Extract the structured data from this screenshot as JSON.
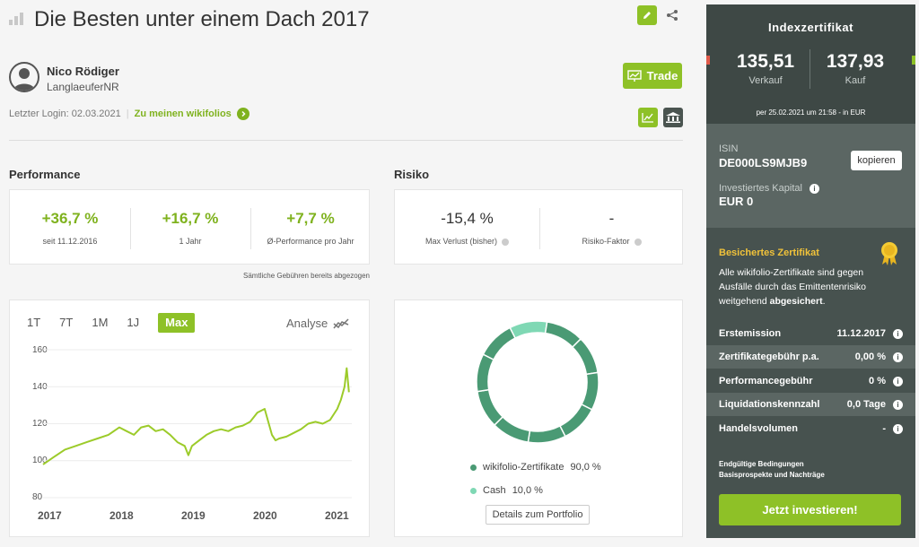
{
  "header": {
    "title": "Die Besten unter einem Dach 2017"
  },
  "user": {
    "name": "Nico Rödiger",
    "handle": "LanglaeuferNR",
    "last_login_label": "Letzter Login: 02.03.2021",
    "wikifolios_link": "Zu meinen wikifolios"
  },
  "trade_label": "Trade",
  "performance": {
    "heading": "Performance",
    "items": [
      {
        "value": "+36,7 %",
        "label": "seit 11.12.2016"
      },
      {
        "value": "+16,7 %",
        "label": "1 Jahr"
      },
      {
        "value": "+7,7 %",
        "label": "Ø-Performance pro Jahr"
      }
    ],
    "fees_note": "Sämtliche Gebühren bereits abgezogen"
  },
  "risk": {
    "heading": "Risiko",
    "items": [
      {
        "value": "-15,4 %",
        "label": "Max Verlust (bisher)"
      },
      {
        "value": "-",
        "label": "Risiko-Faktor"
      }
    ]
  },
  "chart_tabs": [
    "1T",
    "7T",
    "1M",
    "1J",
    "Max"
  ],
  "chart_active_tab": "Max",
  "analyse_label": "Analyse",
  "chart_data": [
    {
      "type": "line",
      "title": "",
      "xlabel": "",
      "ylabel": "",
      "x_ticks": [
        "2017",
        "2018",
        "2019",
        "2020",
        "2021"
      ],
      "y_ticks": [
        "160",
        "140",
        "120",
        "100",
        "80"
      ],
      "ylim": [
        80,
        160
      ],
      "xlim": [
        2016.95,
        2021.2
      ],
      "grid": true,
      "series": [
        {
          "color": "#9ccb2a",
          "x": [
            2016.95,
            2017.1,
            2017.25,
            2017.4,
            2017.55,
            2017.7,
            2017.85,
            2018.0,
            2018.1,
            2018.2,
            2018.3,
            2018.4,
            2018.5,
            2018.6,
            2018.7,
            2018.8,
            2018.9,
            2018.95,
            2019.0,
            2019.1,
            2019.2,
            2019.3,
            2019.4,
            2019.5,
            2019.6,
            2019.7,
            2019.8,
            2019.9,
            2020.0,
            2020.1,
            2020.15,
            2020.2,
            2020.3,
            2020.4,
            2020.5,
            2020.6,
            2020.7,
            2020.8,
            2020.9,
            2021.0,
            2021.05,
            2021.1,
            2021.13,
            2021.16
          ],
          "y": [
            98,
            102,
            106,
            108,
            110,
            112,
            114,
            118,
            116,
            114,
            118,
            119,
            116,
            117,
            114,
            110,
            108,
            103,
            108,
            111,
            114,
            116,
            117,
            116,
            118,
            119,
            121,
            126,
            128,
            114,
            111,
            112,
            113,
            115,
            117,
            120,
            121,
            120,
            122,
            128,
            133,
            140,
            150,
            137
          ]
        }
      ]
    },
    {
      "type": "pie",
      "title": "",
      "labels": [
        "wikifolio-Zertifikate",
        "Cash"
      ],
      "values": [
        90.0,
        10.0
      ],
      "colors": [
        "#4a9a74",
        "#7fd8b4"
      ],
      "display_values": [
        "90,0 %",
        "10,0 %"
      ],
      "donut": true
    }
  ],
  "portfolio_details_label": "Details zum Portfolio",
  "sidebar": {
    "heading": "Indexzertifikat",
    "sell_value": "135,51",
    "sell_label": "Verkauf",
    "buy_value": "137,93",
    "buy_label": "Kauf",
    "timestamp": "per 25.02.2021 um 21:58 - in EUR",
    "isin_label": "ISIN",
    "isin": "DE000LS9MJB9",
    "copy_label": "kopieren",
    "capital_label": "Investiertes Kapital",
    "capital_value": "EUR 0",
    "secured_title": "Besichertes Zertifikat",
    "secured_text_1": "Alle wikifolio-Zertifikate sind gegen Ausfälle durch das Emittentenrisiko weitgehend ",
    "secured_text_bold": "abgesichert",
    "secured_text_2": ".",
    "rows": [
      {
        "label": "Erstemission",
        "value": "11.12.2017"
      },
      {
        "label": "Zertifikategebühr p.a.",
        "value": "0,00 %"
      },
      {
        "label": "Performancegebühr",
        "value": "0 %"
      },
      {
        "label": "Liquidationskennzahl",
        "value": "0,0 Tage"
      },
      {
        "label": "Handelsvolumen",
        "value": "-"
      }
    ],
    "link_1": "Endgültige Bedingungen",
    "link_2": "Basisprospekte und Nachträge",
    "invest_label": "Jetzt investieren!"
  },
  "colors": {
    "accent": "#8ec127",
    "positive": "#7fb21e",
    "sidebar_bg": "#47524f"
  }
}
